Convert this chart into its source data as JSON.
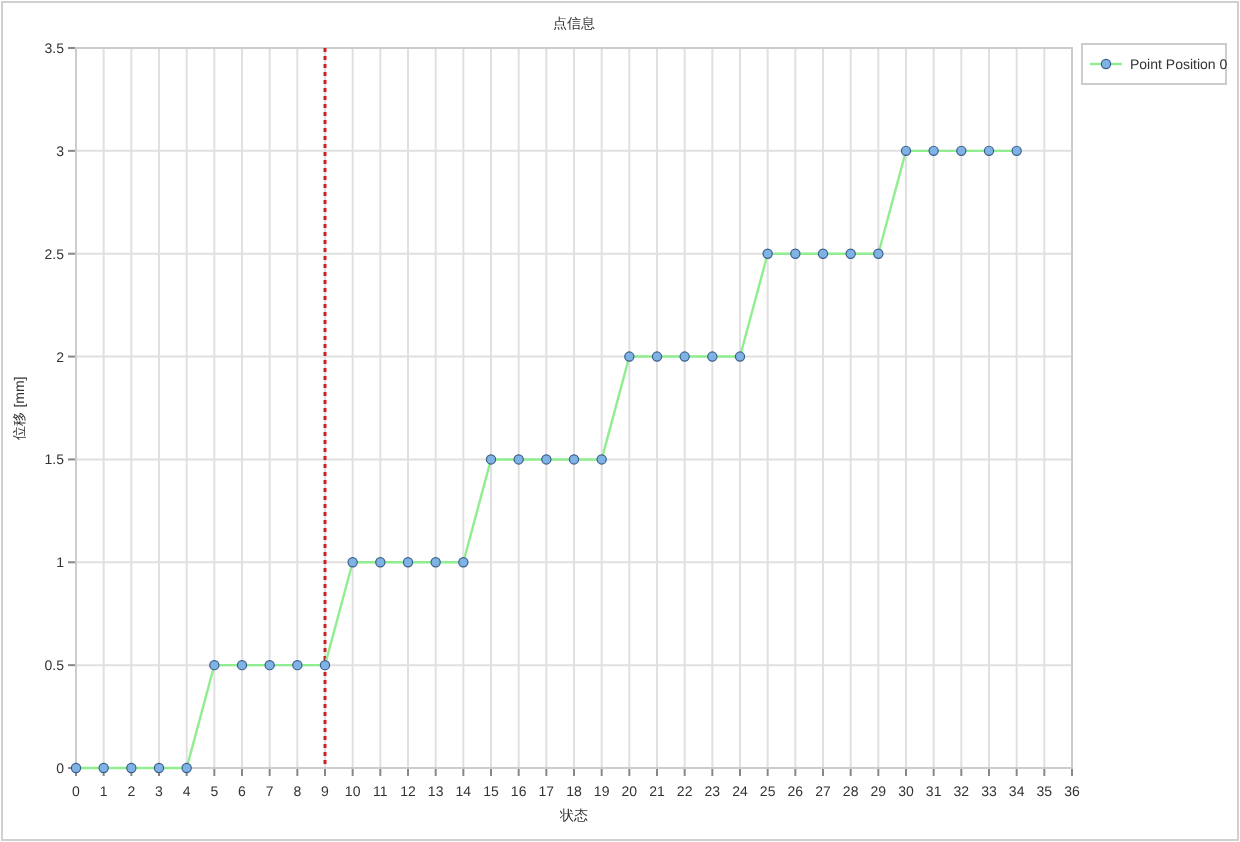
{
  "chart_data": {
    "type": "line",
    "title": "点信息",
    "xlabel": "状态",
    "ylabel": "位移 [mm]",
    "x": [
      0,
      1,
      2,
      3,
      4,
      5,
      6,
      7,
      8,
      9,
      10,
      11,
      12,
      13,
      14,
      15,
      16,
      17,
      18,
      19,
      20,
      21,
      22,
      23,
      24,
      25,
      26,
      27,
      28,
      29,
      30,
      31,
      32,
      33,
      34
    ],
    "series": [
      {
        "name": "Point Position 0",
        "color": "#90ee90",
        "values": [
          0,
          0,
          0,
          0,
          0,
          0.5,
          0.5,
          0.5,
          0.5,
          0.5,
          1,
          1,
          1,
          1,
          1,
          1.5,
          1.5,
          1.5,
          1.5,
          1.5,
          2,
          2,
          2,
          2,
          2,
          2.5,
          2.5,
          2.5,
          2.5,
          2.5,
          3,
          3,
          3,
          3,
          3
        ]
      }
    ],
    "xlim": [
      0,
      36
    ],
    "xticks": [
      0,
      1,
      2,
      3,
      4,
      5,
      6,
      7,
      8,
      9,
      10,
      11,
      12,
      13,
      14,
      15,
      16,
      17,
      18,
      19,
      20,
      21,
      22,
      23,
      24,
      25,
      26,
      27,
      28,
      29,
      30,
      31,
      32,
      33,
      34,
      35,
      36
    ],
    "ylim": [
      0,
      3.5
    ],
    "yticks": [
      0,
      0.5,
      1,
      1.5,
      2,
      2.5,
      3,
      3.5
    ],
    "ref_lines": [
      {
        "axis": "x",
        "value": 9,
        "color": "#cc2222",
        "line_style": "dotted"
      }
    ],
    "grid": true,
    "legend": "top right",
    "marker": "circle",
    "line_style": "solid"
  }
}
